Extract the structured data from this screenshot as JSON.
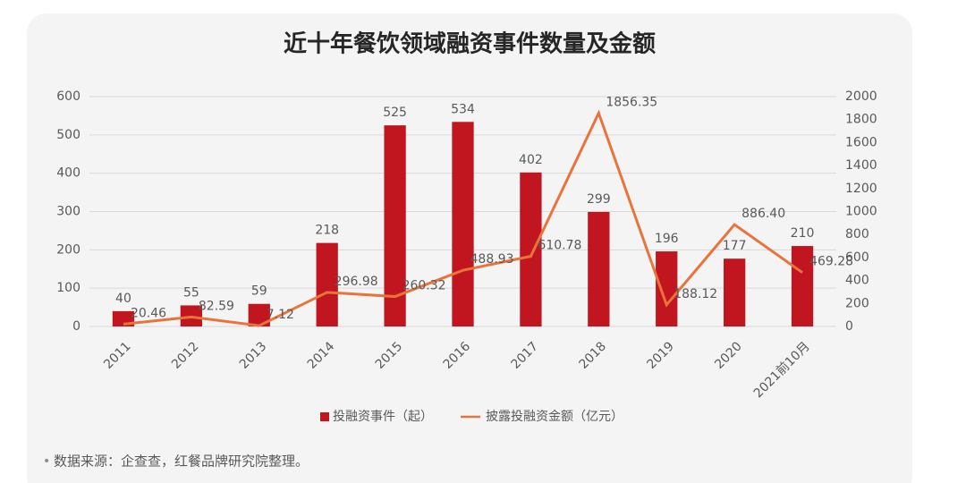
{
  "chart_data": {
    "type": "bar-line",
    "title": "近十年餐饮领域融资事件数量及金额",
    "categories": [
      "2011",
      "2012",
      "2013",
      "2014",
      "2015",
      "2016",
      "2017",
      "2018",
      "2019",
      "2020",
      "2021前10月"
    ],
    "series": [
      {
        "name": "投融资事件（起）",
        "type": "bar",
        "color": "#c1161f",
        "values": [
          40,
          55,
          59,
          218,
          525,
          534,
          402,
          299,
          196,
          177,
          210
        ]
      },
      {
        "name": "披露投融资金额（亿元）",
        "type": "line",
        "axis": "y2",
        "color": "#e8743b",
        "values": [
          20.46,
          82.59,
          7.12,
          296.98,
          260.32,
          488.93,
          610.78,
          1856.35,
          188.12,
          886.4,
          469.28
        ],
        "value_labels": [
          "20.46",
          "82.59",
          "7.12",
          "296.98",
          "260.32",
          "488.93",
          "610.78",
          "1856.35",
          "188.12",
          "886.40",
          "469.28"
        ]
      }
    ],
    "ylim": [
      0,
      600
    ],
    "yticks": [
      0,
      100,
      200,
      300,
      400,
      500,
      600
    ],
    "y2lim": [
      0,
      2000
    ],
    "y2ticks": [
      0,
      200,
      400,
      600,
      800,
      1000,
      1200,
      1400,
      1600,
      1800,
      2000
    ],
    "grid": true,
    "legend": "bottom",
    "source": "数据来源：企查查，红餐品牌研究院整理。"
  }
}
